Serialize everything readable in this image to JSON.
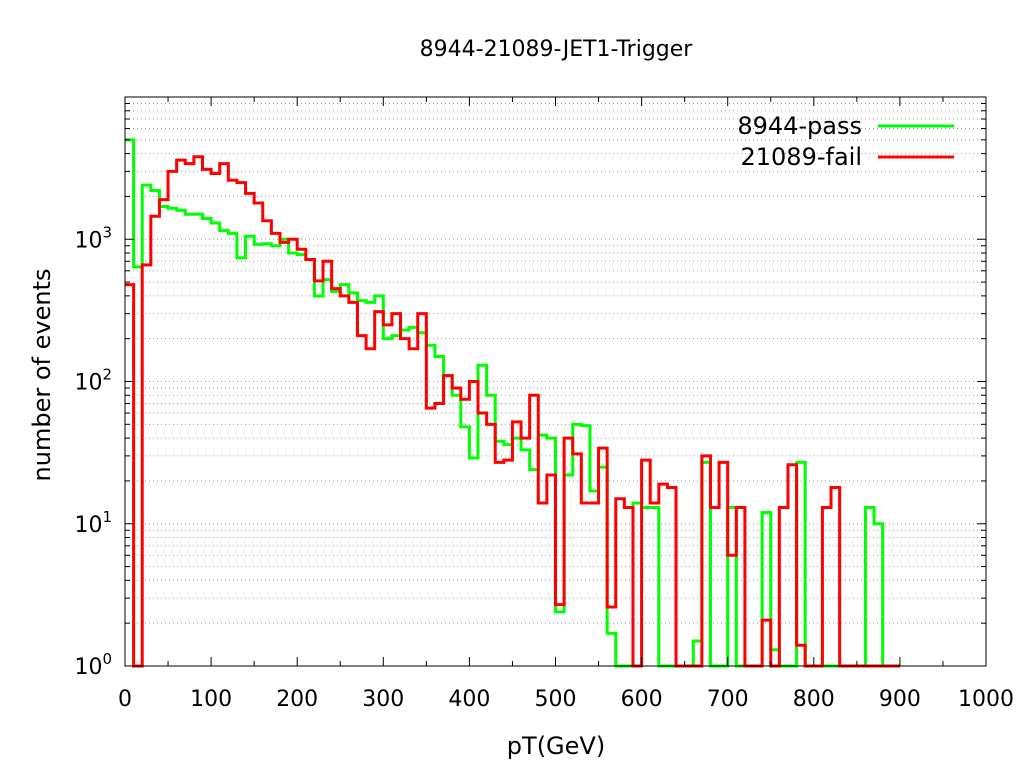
{
  "chart_data": {
    "type": "line",
    "step": true,
    "title": "8944-21089-JET1-Trigger",
    "xlabel": "pT(GeV)",
    "ylabel": "number of events",
    "xlim": [
      0,
      1000
    ],
    "ylim": [
      1,
      10000
    ],
    "yscale": "log",
    "grid": "y-minor-dotted",
    "legend": "top-right",
    "bin_width": 10,
    "x_ticks": [
      "0",
      "100",
      "200",
      "300",
      "400",
      "500",
      "600",
      "700",
      "800",
      "900",
      "1000"
    ],
    "y_ticks": [
      {
        "value": 1,
        "base": "10",
        "exp": "0"
      },
      {
        "value": 10,
        "base": "10",
        "exp": "1"
      },
      {
        "value": 100,
        "base": "10",
        "exp": "2"
      },
      {
        "value": 1000,
        "base": "10",
        "exp": "3"
      }
    ],
    "series": [
      {
        "name": "8944-pass",
        "color": "#00ff00",
        "x": [
          0,
          10,
          20,
          30,
          40,
          50,
          60,
          70,
          80,
          90,
          100,
          110,
          120,
          130,
          140,
          150,
          160,
          170,
          180,
          190,
          200,
          210,
          220,
          230,
          240,
          250,
          260,
          270,
          280,
          290,
          300,
          310,
          320,
          330,
          340,
          350,
          360,
          370,
          380,
          390,
          400,
          410,
          420,
          430,
          440,
          450,
          460,
          470,
          480,
          490,
          500,
          510,
          520,
          530,
          540,
          550,
          560,
          570,
          580,
          590,
          600,
          610,
          620,
          630,
          640,
          650,
          660,
          670,
          680,
          690,
          700,
          710,
          720,
          730,
          740,
          750,
          760,
          770,
          780,
          790,
          800,
          810,
          820,
          830,
          840,
          850,
          860,
          870,
          880,
          890
        ],
        "y": [
          5000,
          640,
          2400,
          2200,
          1700,
          1650,
          1600,
          1500,
          1500,
          1400,
          1300,
          1150,
          1100,
          740,
          1050,
          920,
          930,
          900,
          1000,
          800,
          780,
          720,
          400,
          520,
          430,
          480,
          420,
          370,
          360,
          400,
          200,
          210,
          230,
          240,
          220,
          180,
          150,
          110,
          80,
          48,
          29,
          130,
          80,
          38,
          36,
          40,
          33,
          24,
          42,
          40,
          2.4,
          22,
          50,
          49,
          17,
          25,
          1.7,
          0,
          0,
          14,
          13,
          13,
          0,
          0,
          0,
          0,
          1.5,
          27,
          0,
          0,
          13,
          0,
          0,
          0,
          12,
          1.3,
          0,
          0,
          27,
          0,
          0,
          0,
          0,
          0,
          0,
          0,
          13,
          10,
          0,
          0
        ]
      },
      {
        "name": "21089-fail",
        "color": "#ff0000",
        "x": [
          0,
          10,
          20,
          30,
          40,
          50,
          60,
          70,
          80,
          90,
          100,
          110,
          120,
          130,
          140,
          150,
          160,
          170,
          180,
          190,
          200,
          210,
          220,
          230,
          240,
          250,
          260,
          270,
          280,
          290,
          300,
          310,
          320,
          330,
          340,
          350,
          360,
          370,
          380,
          390,
          400,
          410,
          420,
          430,
          440,
          450,
          460,
          470,
          480,
          490,
          500,
          510,
          520,
          530,
          540,
          550,
          560,
          570,
          580,
          590,
          600,
          610,
          620,
          630,
          640,
          650,
          660,
          670,
          680,
          690,
          700,
          710,
          720,
          730,
          740,
          750,
          760,
          770,
          780,
          790,
          800,
          810,
          820,
          830,
          840,
          850,
          860,
          870,
          880,
          890
        ],
        "y": [
          480,
          0,
          660,
          1450,
          1900,
          3000,
          3600,
          3400,
          3800,
          3100,
          2900,
          3400,
          2600,
          2500,
          2100,
          1800,
          1350,
          1100,
          950,
          1000,
          850,
          720,
          510,
          700,
          450,
          400,
          360,
          210,
          170,
          310,
          250,
          300,
          200,
          170,
          300,
          65,
          70,
          110,
          90,
          75,
          100,
          60,
          50,
          27,
          28,
          52,
          40,
          80,
          14,
          22,
          2.7,
          40,
          31,
          14,
          14,
          34,
          2.6,
          15,
          13,
          0,
          28,
          14,
          19,
          18,
          0,
          0,
          0,
          30,
          13,
          27,
          6,
          13,
          0,
          0,
          2.1,
          0,
          13,
          26,
          1.4,
          0,
          0,
          13,
          18,
          0,
          0,
          0,
          0,
          0,
          0,
          0
        ]
      }
    ]
  }
}
